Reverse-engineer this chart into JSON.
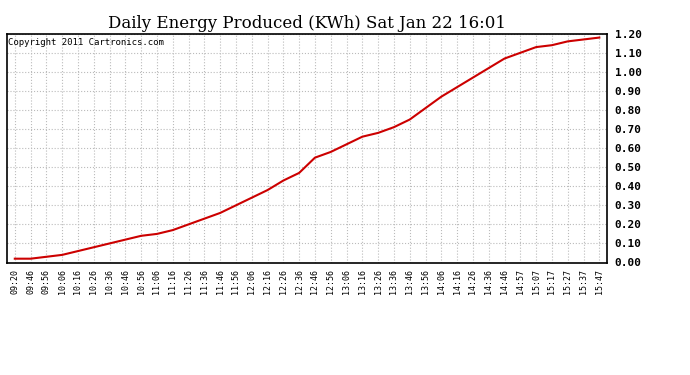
{
  "title": "Daily Energy Produced (KWh) Sat Jan 22 16:01",
  "copyright_text": "Copyright 2011 Cartronics.com",
  "line_color": "#cc0000",
  "background_color": "#ffffff",
  "plot_bg_color": "#ffffff",
  "grid_color": "#bbbbbb",
  "ylim": [
    0.0,
    1.2
  ],
  "yticks": [
    0.0,
    0.1,
    0.2,
    0.3,
    0.4,
    0.5,
    0.6,
    0.7,
    0.8,
    0.9,
    1.0,
    1.1,
    1.2
  ],
  "x_labels": [
    "09:20",
    "09:46",
    "09:56",
    "10:06",
    "10:16",
    "10:26",
    "10:36",
    "10:46",
    "10:56",
    "11:06",
    "11:16",
    "11:26",
    "11:36",
    "11:46",
    "11:56",
    "12:06",
    "12:16",
    "12:26",
    "12:36",
    "12:46",
    "12:56",
    "13:06",
    "13:16",
    "13:26",
    "13:36",
    "13:46",
    "13:56",
    "14:06",
    "14:16",
    "14:26",
    "14:36",
    "14:46",
    "14:57",
    "15:07",
    "15:17",
    "15:27",
    "15:37",
    "15:47"
  ],
  "y_values": [
    0.02,
    0.02,
    0.03,
    0.04,
    0.06,
    0.08,
    0.1,
    0.12,
    0.14,
    0.15,
    0.17,
    0.2,
    0.23,
    0.26,
    0.3,
    0.34,
    0.38,
    0.43,
    0.47,
    0.55,
    0.58,
    0.62,
    0.66,
    0.68,
    0.71,
    0.75,
    0.81,
    0.87,
    0.92,
    0.97,
    1.02,
    1.07,
    1.1,
    1.13,
    1.14,
    1.16,
    1.17,
    1.18
  ],
  "title_fontsize": 12,
  "copyright_fontsize": 6.5,
  "tick_fontsize": 6,
  "ytick_fontsize": 8,
  "line_width": 1.5
}
